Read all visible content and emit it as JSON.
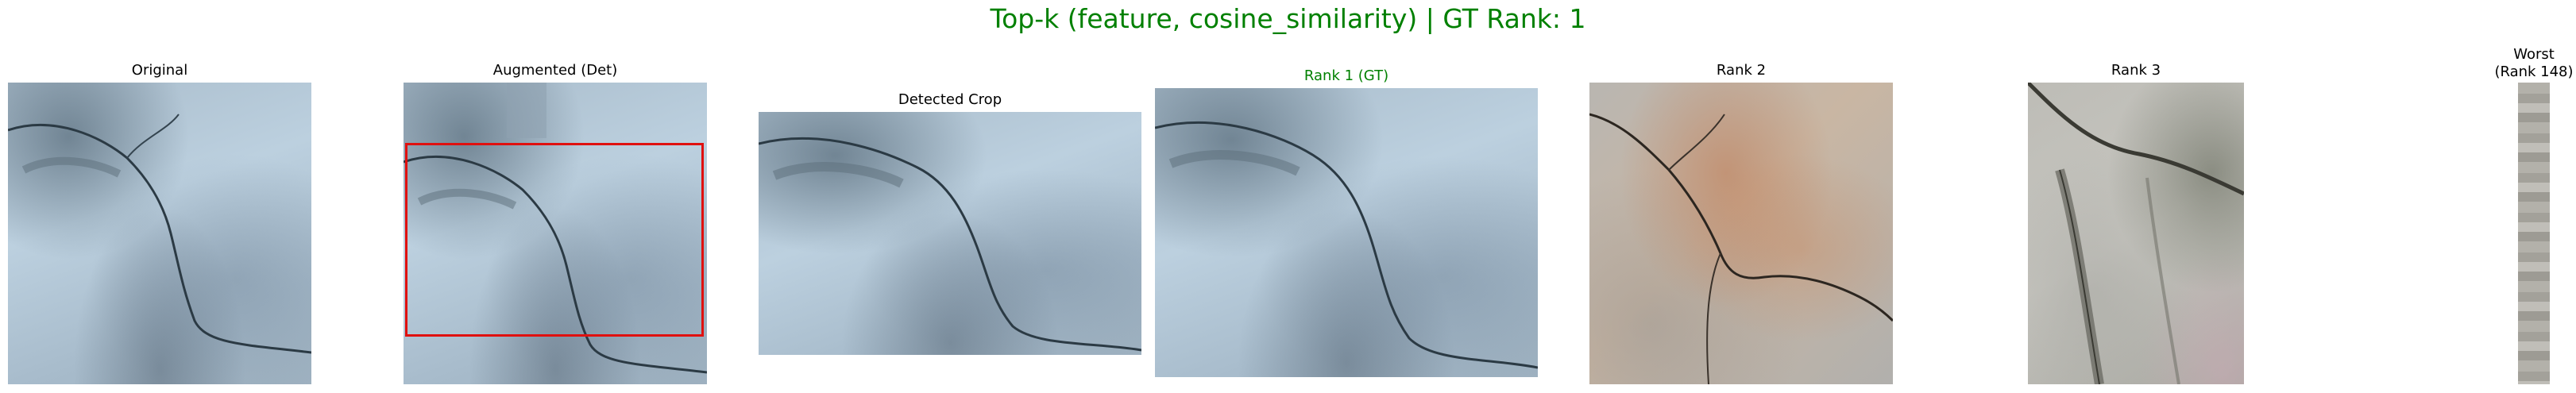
{
  "figure": {
    "suptitle": "Top-k (feature, cosine_similarity) | GT Rank: 1",
    "panels": {
      "original": "Original",
      "augmented": "Augmented (Det)",
      "detected_crop": "Detected Crop",
      "rank1": "Rank 1 (GT)",
      "rank2": "Rank 2",
      "rank3": "Rank 3",
      "worst_line1": "Worst",
      "worst_line2": "(Rank 148)"
    },
    "colors": {
      "gt_title": "#008000",
      "detection_box": "#e0100f"
    }
  }
}
